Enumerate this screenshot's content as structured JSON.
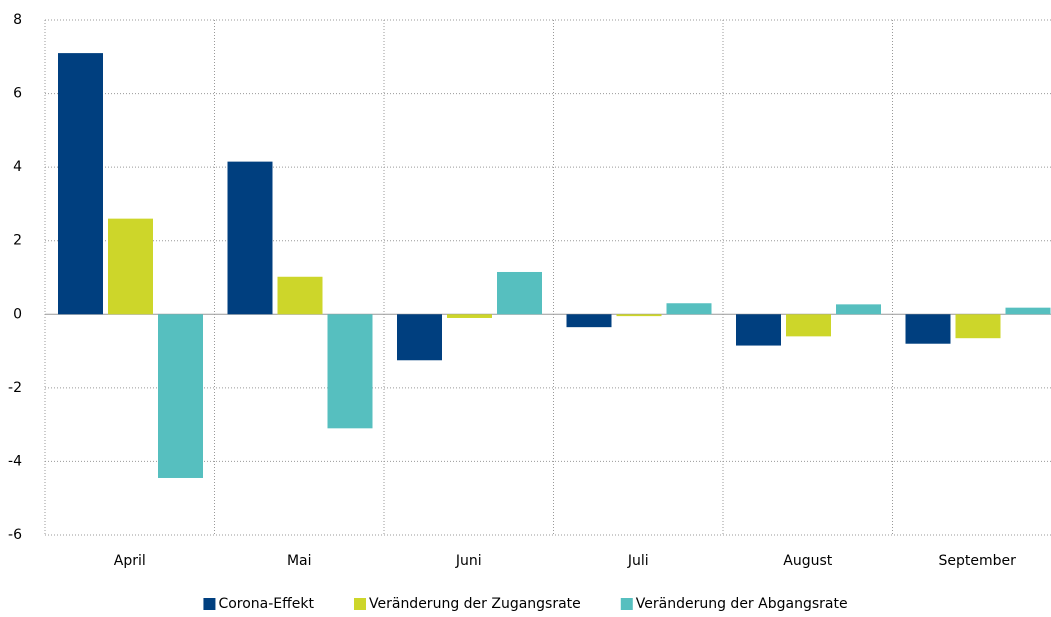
{
  "chart_data": {
    "type": "bar",
    "categories": [
      "April",
      "Mai",
      "Juni",
      "Juli",
      "August",
      "September"
    ],
    "series": [
      {
        "name": "Corona-Effekt",
        "color": "#003f7f",
        "values": [
          7.1,
          4.15,
          -1.25,
          -0.35,
          -0.85,
          -0.8
        ]
      },
      {
        "name": "Veränderung der Zugangsrate",
        "color": "#cdd62a",
        "values": [
          2.6,
          1.02,
          -0.1,
          -0.05,
          -0.6,
          -0.65
        ]
      },
      {
        "name": "Veränderung der Abgangsrate",
        "color": "#56bfbf",
        "values": [
          -4.45,
          -3.1,
          1.15,
          0.3,
          0.27,
          0.18
        ]
      }
    ],
    "ylim": [
      -6,
      8
    ],
    "yticks": [
      -6,
      -4,
      -2,
      0,
      2,
      4,
      6,
      8
    ],
    "grid": true,
    "legend": "bottom"
  }
}
